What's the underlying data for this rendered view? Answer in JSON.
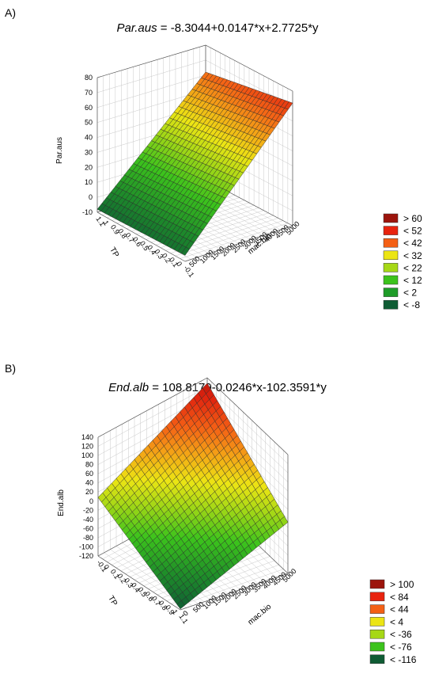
{
  "chart_data": [
    {
      "type": "surface3d",
      "panel_label": "A)",
      "title_var": "Par.aus",
      "title_rest": " = -8.3044+0.0147*x+2.7725*y",
      "equation": {
        "intercept": -8.3044,
        "x_coef": 0.0147,
        "y_coef": 2.7725
      },
      "zlabel": "Par.aus",
      "xlabel": "mac.bio",
      "ylabel": "TP",
      "z_ticks": [
        "80",
        "70",
        "60",
        "50",
        "40",
        "30",
        "20",
        "10",
        "0",
        "-10"
      ],
      "tp_ticks": [
        "1.1",
        "1",
        "0.9",
        "0.8",
        "0.7",
        "0.6",
        "0.5",
        "0.4",
        "0.3",
        "0.2",
        "0.1",
        "0",
        "-0.1"
      ],
      "mac_ticks": [
        "500",
        "1000",
        "1500",
        "2000",
        "2500",
        "3000",
        "3500",
        "4000",
        "4500",
        "5000"
      ],
      "zlim": [
        -10,
        80
      ],
      "legend": [
        {
          "label": "> 60",
          "color": "#9c140c"
        },
        {
          "label": "< 52",
          "color": "#e8230e"
        },
        {
          "label": "< 42",
          "color": "#f46015"
        },
        {
          "label": "< 32",
          "color": "#ece514"
        },
        {
          "label": "< 22",
          "color": "#a6d816"
        },
        {
          "label": "< 12",
          "color": "#3cc31c"
        },
        {
          "label": "< 2",
          "color": "#1e9c28"
        },
        {
          "label": "< -8",
          "color": "#0f5c34"
        }
      ]
    },
    {
      "type": "surface3d",
      "panel_label": "B)",
      "title_var": "End.alb",
      "title_rest": " = 108.8179-0.0246*x-102.3591*y",
      "equation": {
        "intercept": 108.8179,
        "x_coef": -0.0246,
        "y_coef": -102.3591
      },
      "zlabel": "End.alb",
      "xlabel": "mac.bio",
      "ylabel": "TP",
      "z_ticks": [
        "140",
        "120",
        "100",
        "80",
        "60",
        "40",
        "20",
        "0",
        "-20",
        "-40",
        "-60",
        "-80",
        "-100",
        "-120"
      ],
      "tp_ticks": [
        "-0.1",
        "0",
        "0.1",
        "0.2",
        "0.3",
        "0.4",
        "0.5",
        "0.6",
        "0.7",
        "0.8",
        "0.9",
        "1",
        "1.1"
      ],
      "mac_ticks": [
        "0",
        "500",
        "1000",
        "1500",
        "2000",
        "2500",
        "3000",
        "3500",
        "4000",
        "4500",
        "5000"
      ],
      "zlim": [
        -120,
        140
      ],
      "legend": [
        {
          "label": "> 100",
          "color": "#9c140c"
        },
        {
          "label": "< 84",
          "color": "#e8230e"
        },
        {
          "label": "< 44",
          "color": "#f46015"
        },
        {
          "label": "< 4",
          "color": "#ece514"
        },
        {
          "label": "< -36",
          "color": "#a6d816"
        },
        {
          "label": "< -76",
          "color": "#3cc31c"
        },
        {
          "label": "< -116",
          "color": "#0f5c34"
        }
      ]
    }
  ]
}
